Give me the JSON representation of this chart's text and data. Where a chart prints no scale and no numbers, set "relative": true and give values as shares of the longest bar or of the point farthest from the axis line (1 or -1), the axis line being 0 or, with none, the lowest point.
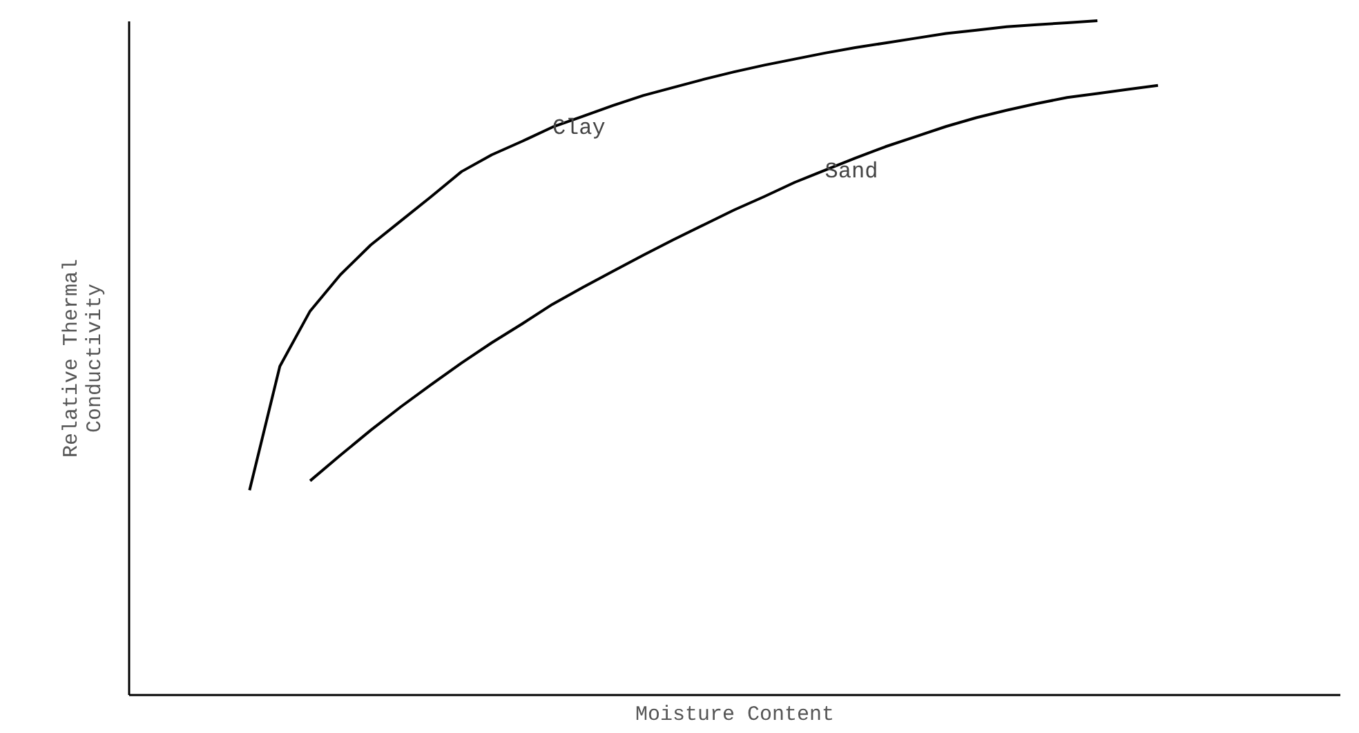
{
  "chart_data": {
    "type": "line",
    "relative": true,
    "xlabel": "Moisture Content",
    "ylabel": "Relative Thermal\nConductivity",
    "grid": false,
    "marker": "none",
    "line_style": "solid",
    "tick_labels": false,
    "categories": [
      null,
      null,
      null,
      null,
      null,
      null,
      null,
      null,
      null,
      null,
      null,
      null,
      null,
      null,
      null,
      null,
      null,
      null,
      null,
      null,
      null,
      null,
      null,
      null,
      null,
      null,
      null,
      null,
      null,
      null,
      null,
      null,
      null,
      null,
      null,
      null,
      null,
      null,
      null,
      null,
      null
    ],
    "series": [
      {
        "name": "Clay",
        "color": "#000000",
        "values": [
          null,
          null,
          null,
          null,
          0.303,
          0.487,
          0.569,
          0.623,
          0.667,
          0.703,
          0.739,
          0.776,
          0.801,
          0.821,
          0.842,
          0.858,
          0.874,
          0.889,
          0.901,
          0.913,
          0.924,
          0.934,
          0.943,
          0.952,
          0.96,
          0.967,
          0.974,
          0.981,
          0.986,
          0.991,
          0.994,
          0.997,
          1,
          null,
          null,
          null,
          null,
          null,
          null,
          null,
          null
        ]
      },
      {
        "name": "Sand",
        "color": "#000000",
        "values": [
          null,
          null,
          null,
          null,
          null,
          null,
          0.317,
          0.355,
          0.392,
          0.427,
          0.46,
          0.492,
          0.522,
          0.55,
          0.579,
          0.604,
          0.628,
          0.652,
          0.675,
          0.697,
          0.719,
          0.739,
          0.76,
          0.778,
          0.796,
          0.813,
          0.828,
          0.843,
          0.856,
          0.867,
          0.877,
          0.886,
          0.892,
          0.898,
          0.904,
          null,
          null,
          null,
          null,
          null,
          null
        ]
      }
    ]
  }
}
